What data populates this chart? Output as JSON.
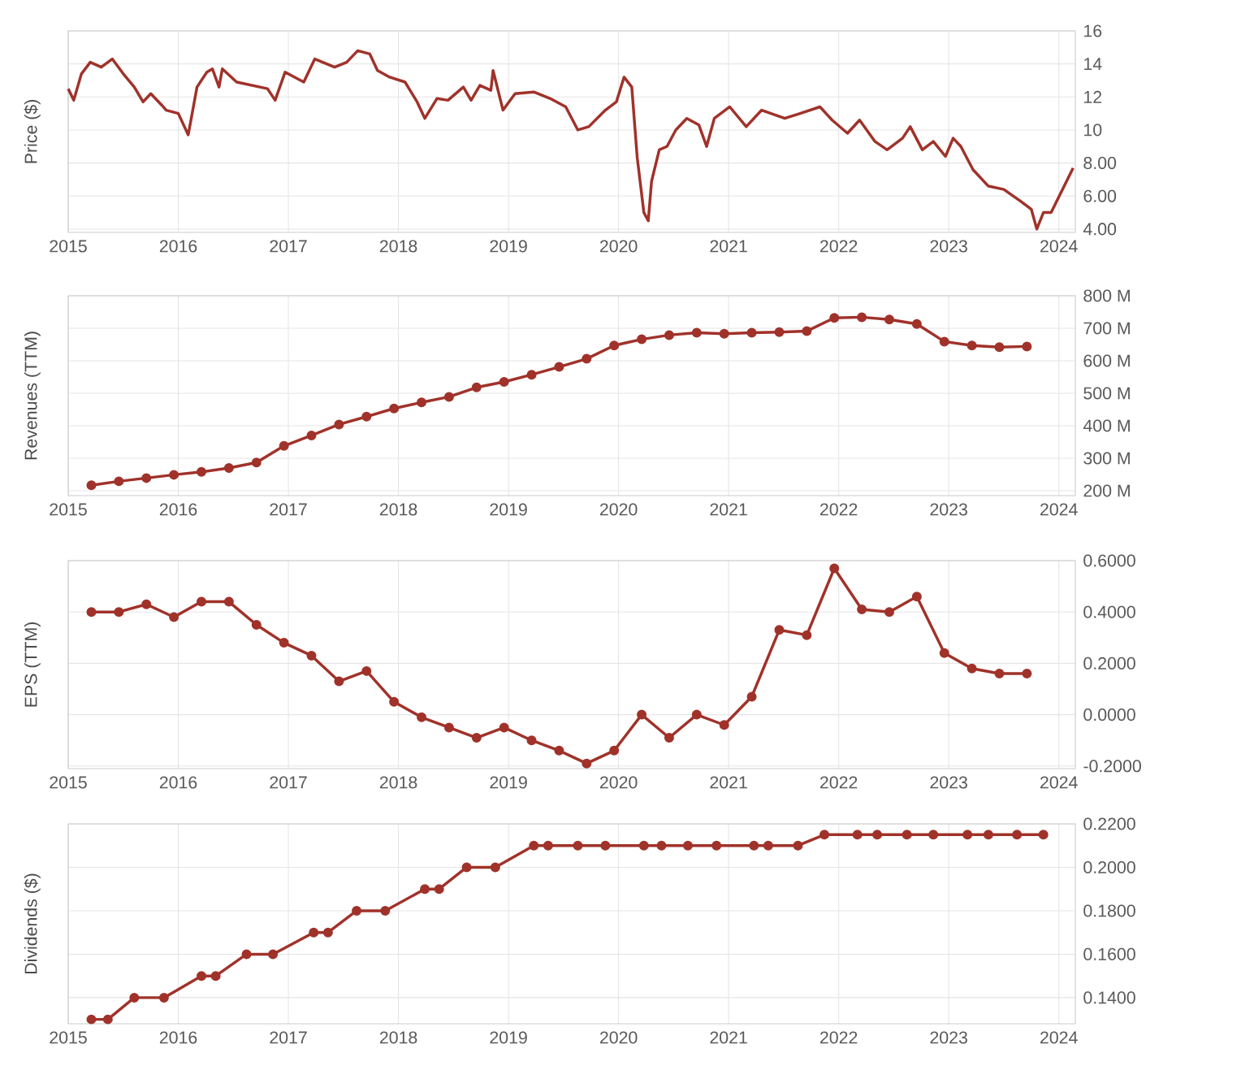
{
  "chart_data": [
    {
      "type": "line",
      "ylabel": "Price ($)",
      "color": "#a0322a",
      "marker": "none",
      "grid": true,
      "x": [
        2015.0,
        2015.05,
        2015.12,
        2015.2,
        2015.3,
        2015.4,
        2015.5,
        2015.6,
        2015.68,
        2015.75,
        2015.85,
        2015.89,
        2016.0,
        2016.09,
        2016.17,
        2016.26,
        2016.31,
        2016.37,
        2016.4,
        2016.53,
        2016.81,
        2016.88,
        2016.97,
        2017.14,
        2017.24,
        2017.42,
        2017.53,
        2017.63,
        2017.74,
        2017.81,
        2017.92,
        2018.06,
        2018.17,
        2018.24,
        2018.35,
        2018.45,
        2018.59,
        2018.66,
        2018.74,
        2018.84,
        2018.86,
        2018.95,
        2019.06,
        2019.23,
        2019.38,
        2019.52,
        2019.63,
        2019.73,
        2019.88,
        2019.98,
        2020.05,
        2020.12,
        2020.17,
        2020.23,
        2020.27,
        2020.3,
        2020.37,
        2020.44,
        2020.52,
        2020.62,
        2020.73,
        2020.8,
        2020.87,
        2021.01,
        2021.16,
        2021.3,
        2021.51,
        2021.65,
        2021.83,
        2021.94,
        2022.08,
        2022.19,
        2022.33,
        2022.44,
        2022.58,
        2022.65,
        2022.76,
        2022.86,
        2022.97,
        2023.04,
        2023.11,
        2023.22,
        2023.36,
        2023.5,
        2023.65,
        2023.75,
        2023.8,
        2023.86,
        2023.93,
        2024.13
      ],
      "values": [
        12.5,
        11.8,
        13.4,
        14.1,
        13.8,
        14.3,
        13.4,
        12.6,
        11.7,
        12.2,
        11.5,
        11.2,
        11.0,
        9.7,
        12.6,
        13.5,
        13.7,
        12.6,
        13.7,
        12.9,
        12.5,
        11.8,
        13.5,
        12.9,
        14.3,
        13.8,
        14.1,
        14.8,
        14.6,
        13.6,
        13.2,
        12.9,
        11.7,
        10.7,
        11.9,
        11.8,
        12.6,
        11.8,
        12.7,
        12.4,
        13.6,
        11.2,
        12.2,
        12.3,
        11.9,
        11.4,
        10.0,
        10.2,
        11.2,
        11.7,
        13.2,
        12.6,
        8.3,
        5.0,
        4.5,
        6.9,
        8.8,
        9.0,
        10.0,
        10.7,
        10.3,
        9.0,
        10.7,
        11.4,
        10.2,
        11.2,
        10.7,
        11.0,
        11.4,
        10.6,
        9.8,
        10.6,
        9.3,
        8.8,
        9.5,
        10.2,
        8.8,
        9.3,
        8.4,
        9.5,
        9.0,
        7.6,
        6.6,
        6.4,
        5.7,
        5.2,
        4.0,
        5.0,
        5.0,
        7.7
      ],
      "xlim": [
        2015,
        2024.15
      ],
      "xticks": [
        2015,
        2016,
        2017,
        2018,
        2019,
        2020,
        2021,
        2022,
        2023,
        2024
      ],
      "ylim": [
        3.8,
        16
      ],
      "yticks": [
        {
          "value": 4,
          "label": "4.00"
        },
        {
          "value": 6,
          "label": "6.00"
        },
        {
          "value": 8,
          "label": "8.00"
        },
        10,
        12,
        14,
        16
      ]
    },
    {
      "type": "line",
      "ylabel": "Revenues (TTM)",
      "color": "#a0322a",
      "marker": "circle",
      "grid": true,
      "x": [
        2015.21,
        2015.46,
        2015.71,
        2015.96,
        2016.21,
        2016.46,
        2016.71,
        2016.96,
        2017.21,
        2017.46,
        2017.71,
        2017.96,
        2018.21,
        2018.46,
        2018.71,
        2018.96,
        2019.21,
        2019.46,
        2019.71,
        2019.96,
        2020.21,
        2020.46,
        2020.71,
        2020.96,
        2021.21,
        2021.46,
        2021.71,
        2021.96,
        2022.21,
        2022.46,
        2022.71,
        2022.96,
        2023.21,
        2023.46,
        2023.71
      ],
      "values": [
        217,
        229,
        239,
        249,
        258,
        270,
        287,
        338,
        370,
        404,
        428,
        453,
        472,
        489,
        518,
        535,
        557,
        581,
        606,
        647,
        666,
        679,
        686,
        683,
        686,
        688,
        691,
        732,
        734,
        727,
        713,
        659,
        647,
        642,
        644
      ],
      "xlim": [
        2015,
        2024.15
      ],
      "xticks": [
        2015,
        2016,
        2017,
        2018,
        2019,
        2020,
        2021,
        2022,
        2023,
        2024
      ],
      "ylim": [
        185,
        800
      ],
      "yticks": [
        {
          "value": 200,
          "label": "200 M"
        },
        {
          "value": 300,
          "label": "300 M"
        },
        {
          "value": 400,
          "label": "400 M"
        },
        {
          "value": 500,
          "label": "500 M"
        },
        {
          "value": 600,
          "label": "600 M"
        },
        {
          "value": 700,
          "label": "700 M"
        },
        {
          "value": 800,
          "label": "800 M"
        }
      ]
    },
    {
      "type": "line",
      "ylabel": "EPS (TTM)",
      "color": "#a0322a",
      "marker": "circle",
      "grid": true,
      "x": [
        2015.21,
        2015.46,
        2015.71,
        2015.96,
        2016.21,
        2016.46,
        2016.71,
        2016.96,
        2017.21,
        2017.46,
        2017.71,
        2017.96,
        2018.21,
        2018.46,
        2018.71,
        2018.96,
        2019.21,
        2019.46,
        2019.71,
        2019.96,
        2020.21,
        2020.46,
        2020.71,
        2020.96,
        2021.21,
        2021.46,
        2021.71,
        2021.96,
        2022.21,
        2022.46,
        2022.71,
        2022.96,
        2023.21,
        2023.46,
        2023.71
      ],
      "values": [
        0.4,
        0.4,
        0.43,
        0.38,
        0.44,
        0.44,
        0.35,
        0.28,
        0.23,
        0.13,
        0.17,
        0.05,
        -0.01,
        -0.05,
        -0.09,
        -0.05,
        -0.1,
        -0.14,
        -0.19,
        -0.14,
        0.0,
        -0.09,
        0.0,
        -0.04,
        0.07,
        0.33,
        0.31,
        0.57,
        0.41,
        0.4,
        0.46,
        0.24,
        0.18,
        0.16,
        0.16
      ],
      "xlim": [
        2015,
        2024.15
      ],
      "xticks": [
        2015,
        2016,
        2017,
        2018,
        2019,
        2020,
        2021,
        2022,
        2023,
        2024
      ],
      "ylim": [
        -0.21,
        0.6
      ],
      "yticks": [
        {
          "value": -0.2,
          "label": "-0.2000"
        },
        {
          "value": 0,
          "label": "0.0000"
        },
        {
          "value": 0.2,
          "label": "0.2000"
        },
        {
          "value": 0.4,
          "label": "0.4000"
        },
        {
          "value": 0.6,
          "label": "0.6000"
        }
      ]
    },
    {
      "type": "line",
      "ylabel": "Dividends ($)",
      "color": "#a0322a",
      "marker": "circle",
      "grid": true,
      "x": [
        2015.21,
        2015.36,
        2015.6,
        2015.87,
        2016.21,
        2016.34,
        2016.62,
        2016.86,
        2017.23,
        2017.36,
        2017.62,
        2017.88,
        2018.24,
        2018.37,
        2018.62,
        2018.88,
        2019.23,
        2019.36,
        2019.63,
        2019.88,
        2020.23,
        2020.39,
        2020.63,
        2020.89,
        2021.23,
        2021.36,
        2021.63,
        2021.87,
        2022.17,
        2022.35,
        2022.62,
        2022.86,
        2023.17,
        2023.36,
        2023.62,
        2023.86
      ],
      "values": [
        0.13,
        0.13,
        0.14,
        0.14,
        0.15,
        0.15,
        0.16,
        0.16,
        0.17,
        0.17,
        0.18,
        0.18,
        0.19,
        0.19,
        0.2,
        0.2,
        0.21,
        0.21,
        0.21,
        0.21,
        0.21,
        0.21,
        0.21,
        0.21,
        0.21,
        0.21,
        0.21,
        0.215,
        0.215,
        0.215,
        0.215,
        0.215,
        0.215,
        0.215,
        0.215,
        0.215
      ],
      "xlim": [
        2015,
        2024.15
      ],
      "xticks": [
        2015,
        2016,
        2017,
        2018,
        2019,
        2020,
        2021,
        2022,
        2023,
        2024
      ],
      "ylim": [
        0.128,
        0.22
      ],
      "yticks": [
        {
          "value": 0.14,
          "label": "0.1400"
        },
        {
          "value": 0.16,
          "label": "0.1600"
        },
        {
          "value": 0.18,
          "label": "0.1800"
        },
        {
          "value": 0.2,
          "label": "0.2000"
        },
        {
          "value": 0.22,
          "label": "0.2200"
        }
      ]
    }
  ]
}
